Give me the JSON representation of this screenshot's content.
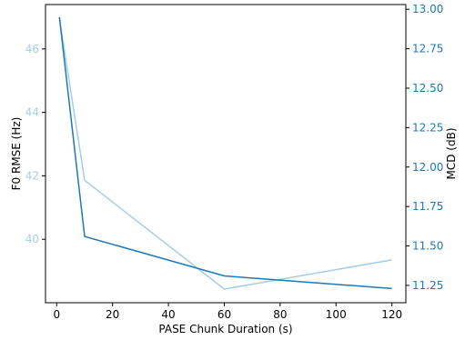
{
  "chart_data": {
    "type": "line",
    "title": "",
    "xlabel": "PASE Chunk Duration (s)",
    "ylabel_left": "F0 RMSE (Hz)",
    "ylabel_right": "MCD (dB)",
    "xlim": [
      -4,
      125
    ],
    "ylim_left": [
      38.0,
      47.4
    ],
    "ylim_right": [
      11.14,
      13.03
    ],
    "x_ticks": [
      0,
      20,
      40,
      60,
      80,
      100,
      120
    ],
    "y_left_ticks": [
      40,
      42,
      44,
      46
    ],
    "y_right_ticks": [
      "11.25",
      "11.50",
      "11.75",
      "12.00",
      "12.25",
      "12.50",
      "12.75",
      "13.00"
    ],
    "grid": false,
    "series": [
      {
        "axis": "left",
        "color": "#a6cee3",
        "x": [
          1,
          10,
          60,
          120
        ],
        "values": [
          46.97,
          41.86,
          38.43,
          39.35
        ]
      },
      {
        "axis": "right",
        "color": "#1f78b4",
        "x": [
          1,
          10,
          60,
          120
        ],
        "values": [
          12.95,
          11.56,
          11.31,
          11.23
        ]
      }
    ],
    "colors": {
      "left_axis_labels": "#a6cee3",
      "right_axis_labels": "#1f78b4",
      "frame": "#000000"
    }
  }
}
